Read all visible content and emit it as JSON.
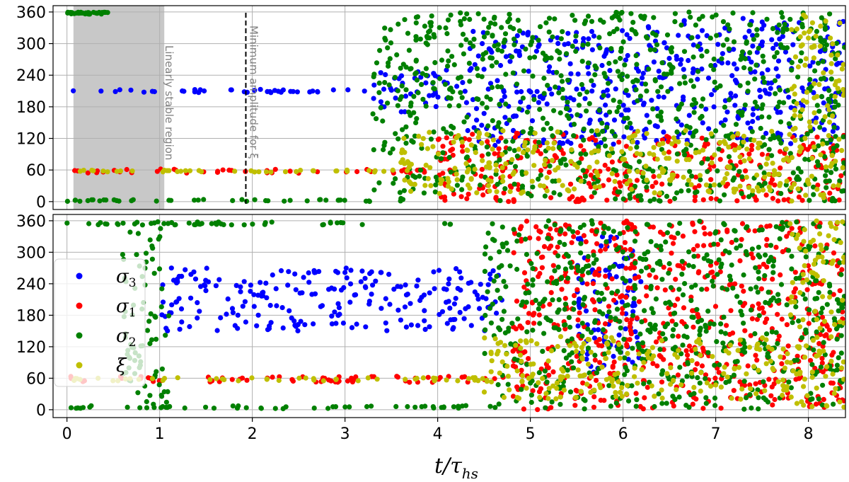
{
  "chart_data": [
    {
      "type": "scatter",
      "panel": "top",
      "title": "",
      "xlabel": "",
      "ylabel": "",
      "xlim": [
        -0.15,
        8.4
      ],
      "ylim": [
        -15,
        372
      ],
      "y_ticks": [
        0,
        60,
        120,
        180,
        240,
        300,
        360
      ],
      "grid": true,
      "shaded_region": {
        "x_range": [
          0.07,
          1.05
        ],
        "label": "Linearly stable region",
        "color": "#c8c8c8"
      },
      "dashed_vline": {
        "x": 1.93,
        "label": "Minimum amplitude for ξ",
        "color": "#000000"
      },
      "series": [
        {
          "name": "σ₃",
          "color": "#0000ff",
          "center": 210,
          "segments": [
            [
              0.0,
              3.3,
              210,
              3
            ],
            [
              3.3,
              4.3,
              210,
              40
            ],
            [
              4.3,
              6.2,
              215,
              110
            ],
            [
              6.2,
              8.4,
              230,
              120
            ]
          ]
        },
        {
          "name": "σ₁",
          "color": "#ff0000",
          "center": 58,
          "segments": [
            [
              0.0,
              4.0,
              58,
              4
            ],
            [
              4.0,
              8.4,
              60,
              70
            ]
          ]
        },
        {
          "name": "σ₂",
          "color": "#008000",
          "segments": [
            [
              0.0,
              0.45,
              358,
              2
            ],
            [
              0.0,
              3.3,
              2,
              2
            ],
            [
              3.3,
              8.4,
              180,
              180
            ]
          ]
        },
        {
          "name": "ξ",
          "color": "#bfbf00",
          "center": 58,
          "segments": [
            [
              0.0,
              3.6,
              58,
              2
            ],
            [
              3.6,
              7.8,
              75,
              60
            ],
            [
              7.8,
              8.4,
              180,
              180
            ]
          ]
        }
      ]
    },
    {
      "type": "scatter",
      "panel": "bottom",
      "title": "",
      "xlabel": "t/τ_hs",
      "ylabel": "",
      "xlim": [
        -0.15,
        8.4
      ],
      "ylim": [
        -15,
        372
      ],
      "x_ticks": [
        0,
        1,
        2,
        3,
        4,
        5,
        6,
        7,
        8
      ],
      "y_ticks": [
        0,
        60,
        120,
        180,
        240,
        300,
        360
      ],
      "grid": true,
      "legend_position": "left",
      "series": [
        {
          "name": "σ₃",
          "color": "#0000ff",
          "segments": [
            [
              1.0,
              4.7,
              210,
              60
            ],
            [
              5.5,
              6.2,
              200,
              130
            ]
          ]
        },
        {
          "name": "σ₁",
          "color": "#ff0000",
          "segments": [
            [
              0.0,
              4.8,
              58,
              6
            ],
            [
              4.8,
              8.4,
              180,
              180
            ]
          ]
        },
        {
          "name": "σ₂",
          "color": "#008000",
          "segments": [
            [
              0.0,
              4.5,
              355,
              3
            ],
            [
              0.0,
              4.5,
              5,
              3
            ],
            [
              0.6,
              1.1,
              180,
              180
            ],
            [
              4.5,
              8.4,
              180,
              180
            ]
          ]
        },
        {
          "name": "ξ",
          "color": "#bfbf00",
          "segments": [
            [
              0.0,
              4.5,
              58,
              3
            ],
            [
              4.5,
              7.8,
              80,
              60
            ],
            [
              7.8,
              8.4,
              180,
              180
            ]
          ]
        }
      ]
    }
  ],
  "x_axis_label": "t/τ",
  "x_axis_label_sub": "hs",
  "legend": [
    {
      "symbol": "σ",
      "subscript": "3",
      "color": "#0000ff"
    },
    {
      "symbol": "σ",
      "subscript": "1",
      "color": "#ff0000"
    },
    {
      "symbol": "σ",
      "subscript": "2",
      "color": "#008000"
    },
    {
      "symbol": "ξ",
      "subscript": "",
      "color": "#bfbf00"
    }
  ],
  "annotations": {
    "stable_region_label": "Linearly stable region",
    "min_amplitude_label": "Minimum amplitude for ξ"
  }
}
